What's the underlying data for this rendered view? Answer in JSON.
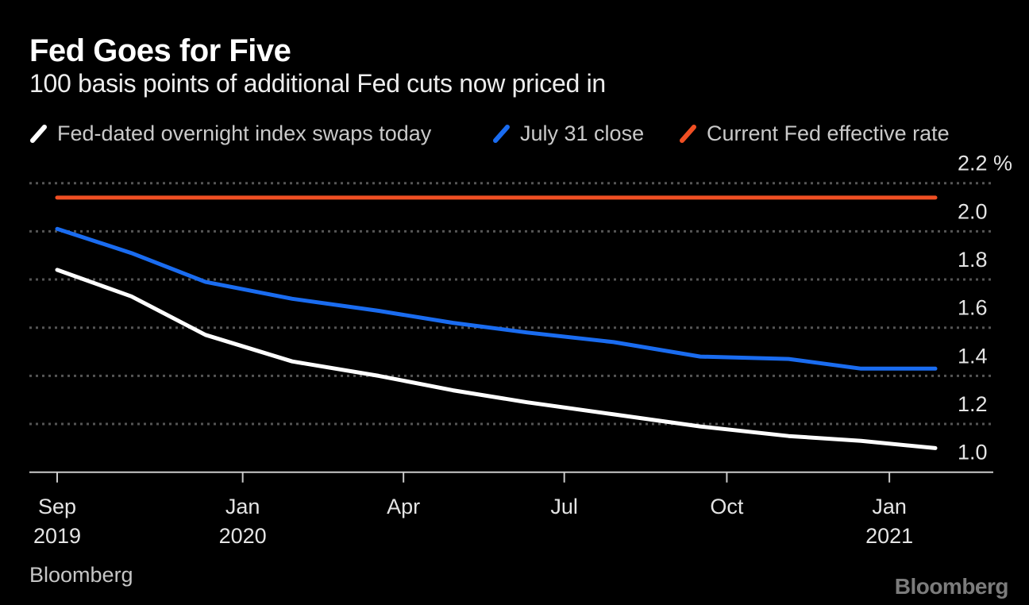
{
  "header": {
    "title": "Fed Goes for Five",
    "subtitle": "100 basis points of additional Fed cuts now priced in"
  },
  "legend": [
    {
      "label": "Fed-dated overnight index swaps today",
      "color": "#ffffff"
    },
    {
      "label": "July 31 close",
      "color": "#1a6cf0"
    },
    {
      "label": "Current Fed effective rate",
      "color": "#f04f23"
    }
  ],
  "chart_data": {
    "type": "line",
    "title": "Fed Goes for Five",
    "subtitle": "100 basis points of additional Fed cuts now priced in",
    "x_dates": [
      "2019-09-18",
      "2019-10-30",
      "2019-12-11",
      "2020-01-29",
      "2020-03-18",
      "2020-04-29",
      "2020-06-10",
      "2020-07-29",
      "2020-09-16",
      "2020-11-05",
      "2020-12-16",
      "2021-01-27"
    ],
    "series": [
      {
        "name": "Current Fed effective rate",
        "color": "#f04f23",
        "values": [
          2.14,
          2.14,
          2.14,
          2.14,
          2.14,
          2.14,
          2.14,
          2.14,
          2.14,
          2.14,
          2.14,
          2.14
        ]
      },
      {
        "name": "July 31 close",
        "color": "#1a6cf0",
        "values": [
          2.01,
          1.91,
          1.79,
          1.72,
          1.67,
          1.62,
          1.58,
          1.54,
          1.48,
          1.47,
          1.43,
          1.43
        ]
      },
      {
        "name": "Fed-dated overnight index swaps today",
        "color": "#ffffff",
        "values": [
          1.84,
          1.73,
          1.57,
          1.46,
          1.4,
          1.34,
          1.29,
          1.24,
          1.19,
          1.15,
          1.13,
          1.1
        ]
      }
    ],
    "ylim": [
      1.0,
      2.2
    ],
    "y_ticks": [
      {
        "value": 2.2,
        "label": "2.2 %"
      },
      {
        "value": 2.0,
        "label": "2.0"
      },
      {
        "value": 1.8,
        "label": "1.8"
      },
      {
        "value": 1.6,
        "label": "1.6"
      },
      {
        "value": 1.4,
        "label": "1.4"
      },
      {
        "value": 1.2,
        "label": "1.2"
      },
      {
        "value": 1.0,
        "label": "1.0"
      }
    ],
    "x_ticks": [
      {
        "date": "2019-09-18",
        "line1": "Sep",
        "line2": "2019"
      },
      {
        "date": "2020-01-01",
        "line1": "Jan",
        "line2": "2020"
      },
      {
        "date": "2020-04-01",
        "line1": "Apr",
        "line2": ""
      },
      {
        "date": "2020-07-01",
        "line1": "Jul",
        "line2": ""
      },
      {
        "date": "2020-10-01",
        "line1": "Oct",
        "line2": ""
      },
      {
        "date": "2021-01-01",
        "line1": "Jan",
        "line2": "2021"
      }
    ],
    "grid": "horizontal-dashed",
    "legend_position": "top"
  },
  "footer": {
    "source": "Bloomberg",
    "logo": "Bloomberg"
  }
}
